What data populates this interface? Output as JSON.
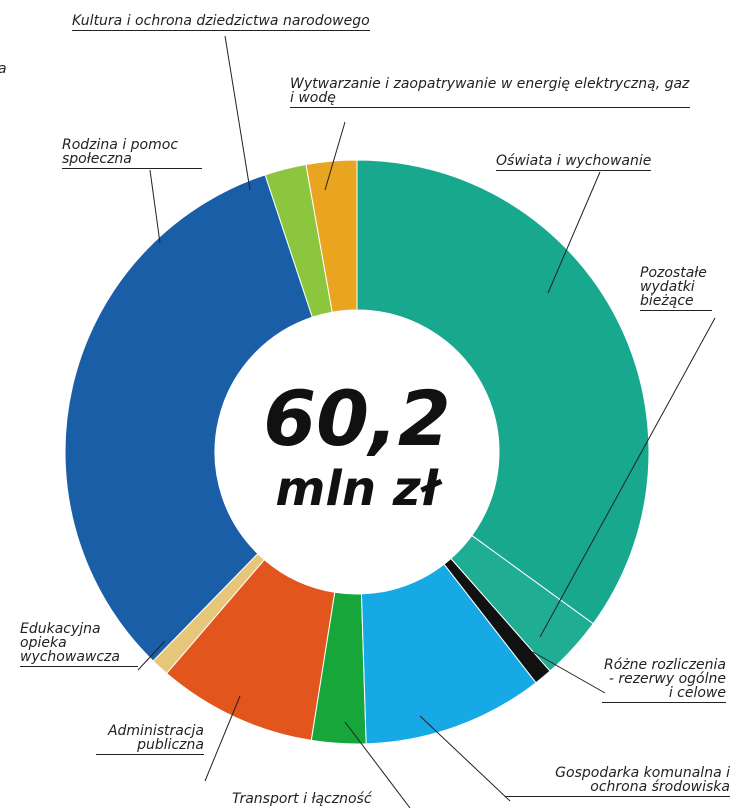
{
  "chart_data": {
    "type": "donut",
    "center_value": "60,2",
    "center_unit": "mln zł",
    "clipped_text": "a",
    "categories": [
      "Oświata i wychowanie",
      "Pozostałe wydatki bieżące",
      "Różne rozliczenia - rezerwy ogólne i celowe",
      "Gospodarka komunalna i ochrona środowiska",
      "Transport i łączność",
      "Administracja publiczna",
      "Edukacyjna opieka wychowawcza",
      "Rodzina i pomoc społeczna",
      "Kultura i ochrona dziedzictwa narodowego",
      "Wytwarzanie i zaopatrywanie w energię elektryczną, gaz i wodę"
    ],
    "values": [
      35,
      3.5,
      1,
      10,
      3,
      8.8,
      1,
      32.6,
      2.3,
      2.8
    ],
    "colors": [
      "#17a88e",
      "#1fae94",
      "#111111",
      "#17a9e6",
      "#17a63a",
      "#e2561e",
      "#e6c77a",
      "#1b5ea8",
      "#8cc63f",
      "#eaa520"
    ]
  }
}
